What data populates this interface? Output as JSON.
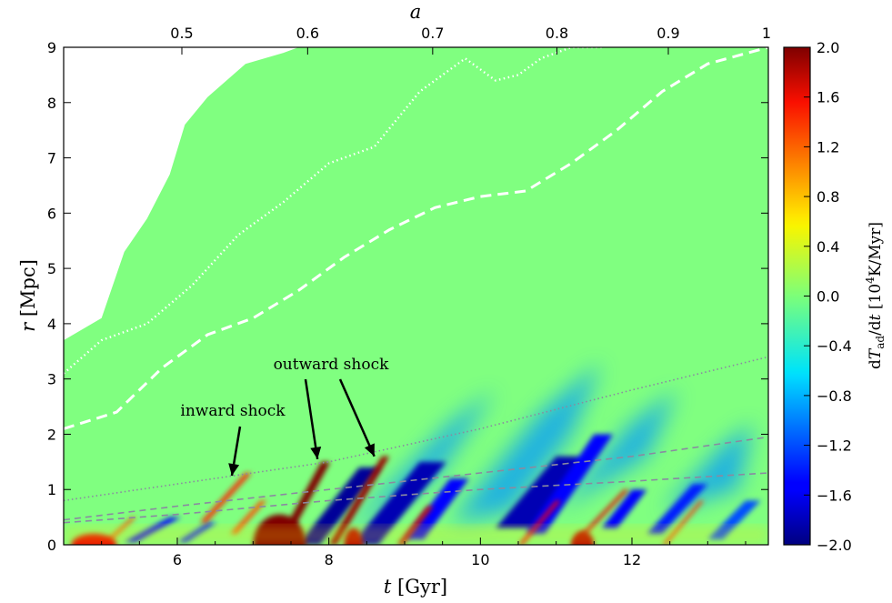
{
  "chart_data": {
    "type": "heatmap",
    "xlabel": "t [Gyr]",
    "ylabel": "r [Mpc]",
    "top_xlabel": "a",
    "colorbar_label": "dT_ad/dt [10^4K/Myr]",
    "colormap": "jet",
    "xlim": [
      4.5,
      13.8
    ],
    "ylim": [
      0,
      9
    ],
    "clim": [
      -2.0,
      2.0
    ],
    "x_ticks": [
      6,
      8,
      10,
      12
    ],
    "x_tick_labels": [
      "6",
      "8",
      "10",
      "12"
    ],
    "y_ticks": [
      0,
      1,
      2,
      3,
      4,
      5,
      6,
      7,
      8,
      9
    ],
    "y_tick_labels": [
      "0",
      "1",
      "2",
      "3",
      "4",
      "5",
      "6",
      "7",
      "8",
      "9"
    ],
    "top_ticks_t": [
      4.55,
      6.06,
      7.72,
      9.37,
      11.01,
      12.48,
      13.8
    ],
    "top_tick_labels": [
      "0.5",
      "0.6",
      "0.7",
      "0.8",
      "0.9",
      "1"
    ],
    "top_tick_at_t": [
      6.06,
      7.72,
      9.37,
      11.01,
      12.48,
      13.8
    ],
    "colorbar_ticks": [
      2.0,
      1.6,
      1.2,
      0.8,
      0.4,
      0.0,
      -0.4,
      -0.8,
      -1.2,
      -1.6,
      -2.0
    ],
    "colorbar_tick_labels": [
      "2.0",
      "1.6",
      "1.2",
      "0.8",
      "0.4",
      "0.0",
      "−0.4",
      "−0.8",
      "−1.2",
      "−1.6",
      "−2.0"
    ],
    "series": [
      {
        "style": "dotted-white",
        "x": [
          4.5,
          5.0,
          5.6,
          6.2,
          6.8,
          7.4,
          8.0,
          8.6,
          9.2,
          9.5,
          9.8,
          10.2,
          10.5,
          10.8,
          11.2,
          11.6
        ],
        "y": [
          3.1,
          3.7,
          4.0,
          4.7,
          5.6,
          6.2,
          6.9,
          7.2,
          8.2,
          8.5,
          8.8,
          8.4,
          8.5,
          8.8,
          9.0,
          9.0
        ]
      },
      {
        "style": "dashed-white",
        "x": [
          4.5,
          5.2,
          5.8,
          6.4,
          7.0,
          7.6,
          8.2,
          8.8,
          9.4,
          10.0,
          10.6,
          11.2,
          11.8,
          12.4,
          13.0,
          13.8
        ],
        "y": [
          2.1,
          2.4,
          3.2,
          3.8,
          4.1,
          4.6,
          5.2,
          5.7,
          6.1,
          6.3,
          6.4,
          6.9,
          7.5,
          8.2,
          8.7,
          9.0
        ]
      },
      {
        "style": "dotted-grey",
        "x": [
          4.5,
          6.0,
          8.0,
          10.0,
          12.0,
          13.8
        ],
        "y": [
          0.8,
          1.1,
          1.5,
          2.1,
          2.8,
          3.4
        ]
      },
      {
        "style": "dashed-grey",
        "x": [
          4.5,
          6.0,
          8.0,
          10.0,
          12.0,
          13.8
        ],
        "y": [
          0.45,
          0.7,
          1.0,
          1.3,
          1.6,
          1.95
        ]
      },
      {
        "style": "dashed-grey",
        "x": [
          4.5,
          6.0,
          8.0,
          10.0,
          12.0,
          13.8
        ],
        "y": [
          0.4,
          0.55,
          0.8,
          1.0,
          1.15,
          1.3
        ]
      }
    ],
    "annotations": [
      {
        "text": "inward shock",
        "text_x": 6.5,
        "text_y": 2.3,
        "arrow_to": [
          6.72,
          1.25
        ]
      },
      {
        "text": "outward shock",
        "text_x": 8.3,
        "text_y": 3.2,
        "arrow_to": [
          7.85,
          1.55
        ]
      },
      {
        "text": "outward shock (second arrow)",
        "arrow_to": [
          8.6,
          1.6
        ]
      }
    ]
  },
  "labels": {
    "inward_shock": "inward shock",
    "outward_shock": "outward shock"
  },
  "colors": {
    "background_field": "#80ff80",
    "empty_region": "#ffffff",
    "white_line": "#ffffff",
    "grey_line": "#8a8aa0"
  }
}
